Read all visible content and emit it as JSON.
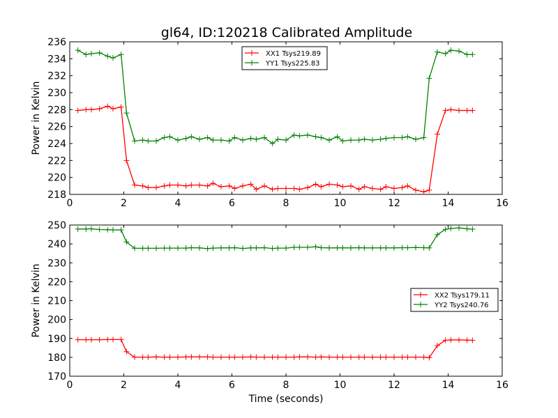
{
  "figure": {
    "title": "gl64, ID:120218 Calibrated Amplitude"
  },
  "chart_data": [
    {
      "type": "line",
      "title": "gl64, ID:120218 Calibrated Amplitude",
      "xlabel": "",
      "ylabel": "Power in Kelvin",
      "xlim": [
        0,
        16
      ],
      "ylim": [
        218,
        236
      ],
      "xticks": [
        "0",
        "2",
        "4",
        "6",
        "8",
        "10",
        "12",
        "14",
        "16"
      ],
      "yticks": [
        "218",
        "220",
        "222",
        "224",
        "226",
        "228",
        "230",
        "232",
        "234",
        "236"
      ],
      "legend_position": "top-center",
      "grid": false,
      "x": [
        0.3,
        0.6,
        0.8,
        1.1,
        1.4,
        1.6,
        1.9,
        2.1,
        2.4,
        2.7,
        2.9,
        3.2,
        3.5,
        3.7,
        4.0,
        4.3,
        4.5,
        4.8,
        5.1,
        5.3,
        5.6,
        5.9,
        6.1,
        6.4,
        6.7,
        6.9,
        7.2,
        7.5,
        7.7,
        8.0,
        8.3,
        8.5,
        8.8,
        9.1,
        9.3,
        9.6,
        9.9,
        10.1,
        10.4,
        10.7,
        10.9,
        11.2,
        11.5,
        11.7,
        12.0,
        12.3,
        12.5,
        12.8,
        13.1,
        13.3,
        13.6,
        13.9,
        14.1,
        14.4,
        14.7,
        14.9
      ],
      "series": [
        {
          "name": "XX1 Tsys219.89",
          "color": "#ff0000",
          "marker": "+",
          "values": [
            227.9,
            228.0,
            228.0,
            228.1,
            228.4,
            228.1,
            228.3,
            222.0,
            219.1,
            219.0,
            218.8,
            218.8,
            219.0,
            219.1,
            219.1,
            219.0,
            219.1,
            219.1,
            219.0,
            219.3,
            218.9,
            219.0,
            218.7,
            219.0,
            219.2,
            218.6,
            219.0,
            218.6,
            218.7,
            218.7,
            218.7,
            218.6,
            218.8,
            219.2,
            218.9,
            219.2,
            219.1,
            218.9,
            219.0,
            218.6,
            218.9,
            218.7,
            218.6,
            218.9,
            218.7,
            218.8,
            219.0,
            218.5,
            218.3,
            218.5,
            225.1,
            227.9,
            228.0,
            227.9,
            227.9,
            227.9
          ],
          "x_note": "same x grid as chart x"
        },
        {
          "name": "YY1 Tsys225.83",
          "color": "#008000",
          "marker": "+",
          "values": [
            235.0,
            234.5,
            234.6,
            234.7,
            234.3,
            234.1,
            234.5,
            227.6,
            224.3,
            224.4,
            224.3,
            224.3,
            224.7,
            224.8,
            224.4,
            224.6,
            224.8,
            224.5,
            224.7,
            224.4,
            224.4,
            224.3,
            224.7,
            224.4,
            224.6,
            224.5,
            224.7,
            224.0,
            224.5,
            224.4,
            225.0,
            224.9,
            225.0,
            224.8,
            224.7,
            224.4,
            224.8,
            224.3,
            224.4,
            224.4,
            224.5,
            224.4,
            224.5,
            224.6,
            224.7,
            224.7,
            224.8,
            224.5,
            224.7,
            231.7,
            234.8,
            234.6,
            235.0,
            234.9,
            234.5,
            234.5
          ]
        }
      ]
    },
    {
      "type": "line",
      "title": "",
      "xlabel": "Time (seconds)",
      "ylabel": "Power in Kelvin",
      "xlim": [
        0,
        16
      ],
      "ylim": [
        170,
        250
      ],
      "xticks": [
        "0",
        "2",
        "4",
        "6",
        "8",
        "10",
        "12",
        "14",
        "16"
      ],
      "yticks": [
        "170",
        "180",
        "190",
        "200",
        "210",
        "220",
        "230",
        "240",
        "250"
      ],
      "legend_position": "center-right",
      "grid": false,
      "x": [
        0.3,
        0.6,
        0.8,
        1.1,
        1.4,
        1.6,
        1.9,
        2.1,
        2.4,
        2.7,
        2.9,
        3.2,
        3.5,
        3.7,
        4.0,
        4.3,
        4.5,
        4.8,
        5.1,
        5.3,
        5.6,
        5.9,
        6.1,
        6.4,
        6.7,
        6.9,
        7.2,
        7.5,
        7.7,
        8.0,
        8.3,
        8.5,
        8.8,
        9.1,
        9.3,
        9.6,
        9.9,
        10.1,
        10.4,
        10.7,
        10.9,
        11.2,
        11.5,
        11.7,
        12.0,
        12.3,
        12.5,
        12.8,
        13.1,
        13.3,
        13.6,
        13.9,
        14.1,
        14.4,
        14.7,
        14.9
      ],
      "series": [
        {
          "name": "XX2 Tsys179.11",
          "color": "#ff0000",
          "marker": "+",
          "values": [
            189.3,
            189.3,
            189.3,
            189.3,
            189.4,
            189.4,
            189.4,
            183.0,
            180.1,
            180.1,
            180.1,
            180.2,
            180.1,
            180.1,
            180.1,
            180.2,
            180.2,
            180.2,
            180.2,
            180.1,
            180.1,
            180.1,
            180.1,
            180.1,
            180.2,
            180.1,
            180.1,
            180.1,
            180.1,
            180.1,
            180.1,
            180.2,
            180.2,
            180.1,
            180.2,
            180.1,
            180.1,
            180.1,
            180.1,
            180.1,
            180.1,
            180.1,
            180.1,
            180.1,
            180.1,
            180.1,
            180.1,
            180.1,
            180.1,
            179.8,
            186.2,
            189.0,
            189.2,
            189.2,
            189.1,
            189.0
          ]
        },
        {
          "name": "YY2 Tsys240.76",
          "color": "#008000",
          "marker": "+",
          "values": [
            247.9,
            247.9,
            248.0,
            247.6,
            247.5,
            247.4,
            247.4,
            241.0,
            237.7,
            237.7,
            237.7,
            237.7,
            237.8,
            237.8,
            237.8,
            237.8,
            238.0,
            237.9,
            237.5,
            237.8,
            237.9,
            237.9,
            238.0,
            237.6,
            237.9,
            237.9,
            238.0,
            237.6,
            237.8,
            237.8,
            238.2,
            238.2,
            238.2,
            238.5,
            238.0,
            237.9,
            237.9,
            237.9,
            237.9,
            238.0,
            237.9,
            237.9,
            237.9,
            237.9,
            237.9,
            238.0,
            238.0,
            238.1,
            238.0,
            237.9,
            244.9,
            247.7,
            248.2,
            248.5,
            248.0,
            247.8
          ]
        }
      ]
    }
  ]
}
